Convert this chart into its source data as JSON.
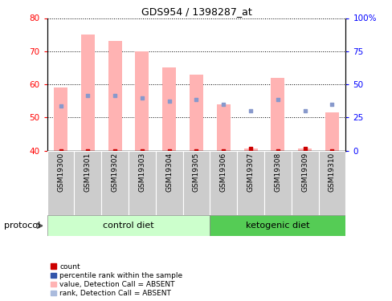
{
  "title": "GDS954 / 1398287_at",
  "samples": [
    "GSM19300",
    "GSM19301",
    "GSM19302",
    "GSM19303",
    "GSM19304",
    "GSM19305",
    "GSM19306",
    "GSM19307",
    "GSM19308",
    "GSM19309",
    "GSM19310"
  ],
  "bar_values": [
    59.0,
    75.0,
    73.0,
    70.0,
    65.0,
    63.0,
    54.0,
    40.5,
    62.0,
    40.5,
    51.5
  ],
  "bar_base": 40,
  "red_dots_y": [
    40.0,
    40.0,
    40.0,
    40.0,
    40.0,
    40.0,
    40.0,
    40.5,
    40.0,
    40.5,
    40.0
  ],
  "blue_squares_y": [
    53.5,
    56.5,
    56.5,
    56.0,
    55.0,
    55.5,
    54.0,
    52.0,
    55.5,
    52.0,
    54.0
  ],
  "ylim_left": [
    40,
    80
  ],
  "ylim_right": [
    0,
    100
  ],
  "yticks_left": [
    40,
    50,
    60,
    70,
    80
  ],
  "yticks_right": [
    0,
    25,
    50,
    75,
    100
  ],
  "ytick_labels_right": [
    "0",
    "25",
    "50",
    "75",
    "100%"
  ],
  "n_control": 6,
  "n_keto": 5,
  "bar_color": "#FFB3B3",
  "red_dot_color": "#CC0000",
  "blue_sq_color": "#8899CC",
  "blue_sq_absent_color": "#AABBDD",
  "control_bg": "#CCFFCC",
  "ketogenic_bg": "#55CC55",
  "sample_bg": "#CCCCCC",
  "legend_colors": [
    "#CC0000",
    "#3355AA",
    "#FFB3B3",
    "#AABBDD"
  ],
  "legend_labels": [
    "count",
    "percentile rank within the sample",
    "value, Detection Call = ABSENT",
    "rank, Detection Call = ABSENT"
  ],
  "protocol_label": "protocol"
}
